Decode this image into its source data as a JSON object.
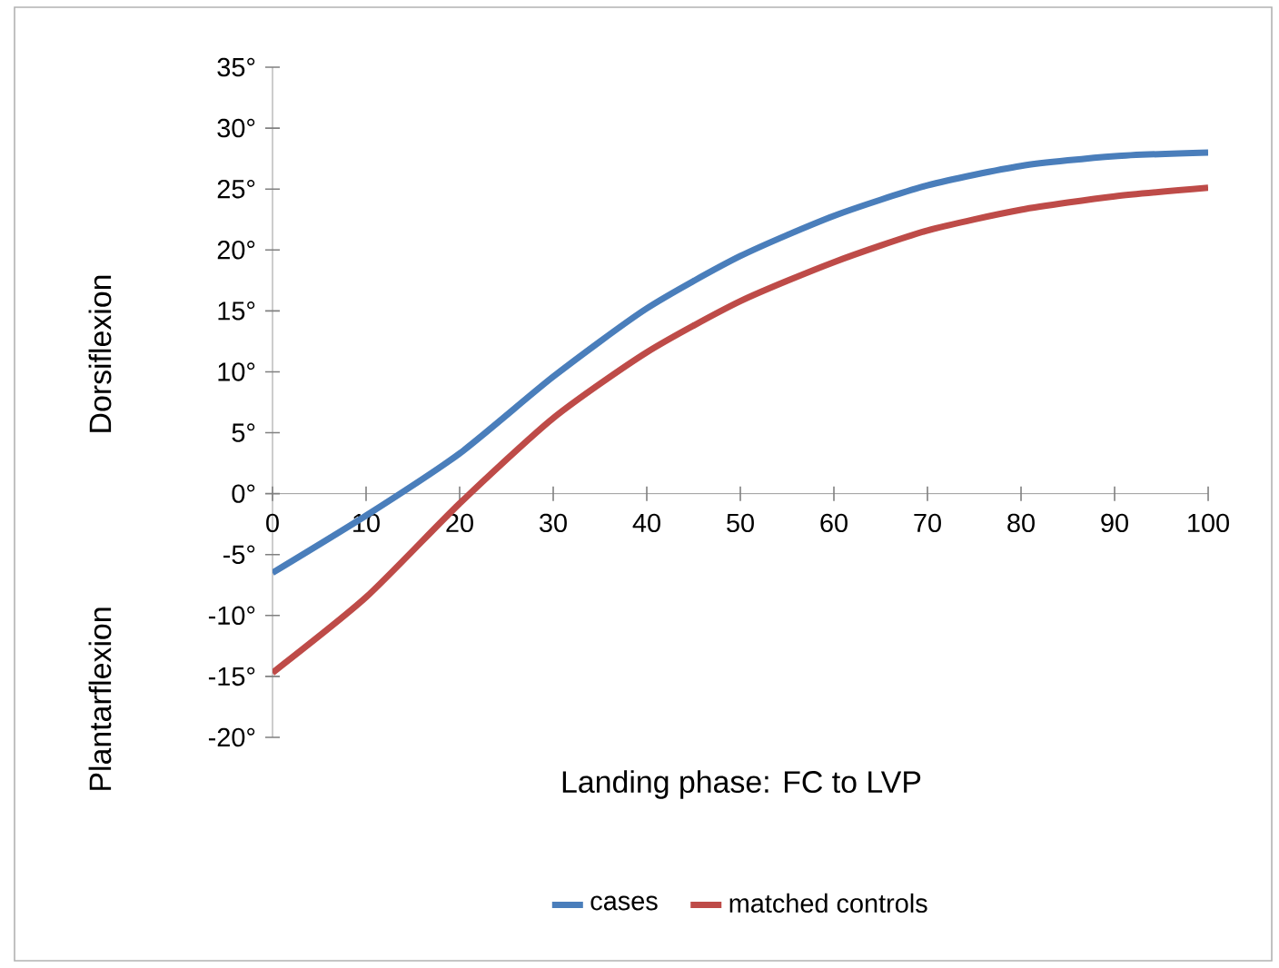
{
  "chart_data": {
    "type": "line",
    "xlabel": "Landing phase: FC to LVP",
    "ylabel": "Dorsiflexion",
    "annotations": [
      "Plantarflexion"
    ],
    "x": [
      0,
      10,
      20,
      30,
      40,
      50,
      60,
      70,
      80,
      90,
      100
    ],
    "series": [
      {
        "name": "cases",
        "color": "#4a7ebb",
        "values": [
          -6.5,
          -1.8,
          3.3,
          9.6,
          15.2,
          19.5,
          22.8,
          25.3,
          26.9,
          27.7,
          28.0
        ]
      },
      {
        "name": "matched controls",
        "color": "#be4b48",
        "values": [
          -14.7,
          -8.5,
          -0.8,
          6.2,
          11.6,
          15.8,
          19.0,
          21.6,
          23.3,
          24.4,
          25.1
        ]
      }
    ],
    "xlim": [
      0,
      100
    ],
    "xticks": [
      0,
      10,
      20,
      30,
      40,
      50,
      60,
      70,
      80,
      90,
      100
    ],
    "ylim": [
      -20,
      35
    ],
    "yticks": [
      {
        "value": -20,
        "label": "-20°"
      },
      {
        "value": -15,
        "label": "-15°"
      },
      {
        "value": -10,
        "label": "-10°"
      },
      {
        "value": -5,
        "label": "-5°"
      },
      {
        "value": 0,
        "label": "0°"
      },
      {
        "value": 5,
        "label": "5°"
      },
      {
        "value": 10,
        "label": "10°"
      },
      {
        "value": 15,
        "label": "15°"
      },
      {
        "value": 20,
        "label": "20°"
      },
      {
        "value": 25,
        "label": "25°"
      },
      {
        "value": 30,
        "label": "30°"
      },
      {
        "value": 35,
        "label": "35°"
      }
    ],
    "legend": "bottom"
  }
}
